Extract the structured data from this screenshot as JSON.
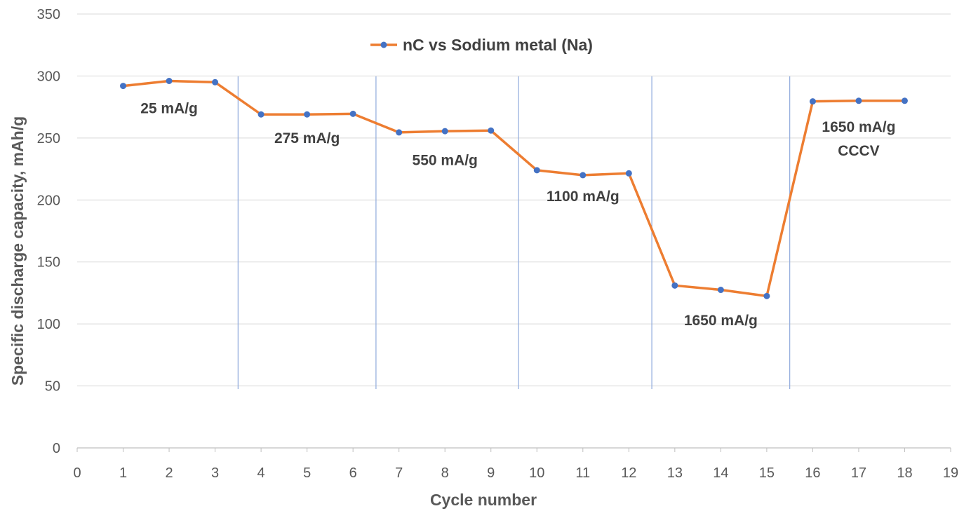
{
  "colors": {
    "line": "#ED7D31",
    "marker": "#4472C4",
    "grid": "#D9D9D9",
    "divider": "#8FAADC",
    "axis": "#BFBFBF",
    "text": "#595959"
  },
  "chart_data": {
    "type": "line",
    "title": "",
    "xlabel": "Cycle number",
    "ylabel": "Specific discharge capacity, mAh/g",
    "xlim": [
      0,
      19
    ],
    "ylim": [
      0,
      350
    ],
    "xticks": [
      0,
      1,
      2,
      3,
      4,
      5,
      6,
      7,
      8,
      9,
      10,
      11,
      12,
      13,
      14,
      15,
      16,
      17,
      18,
      19
    ],
    "yticks": [
      0,
      50,
      100,
      150,
      200,
      250,
      300,
      350
    ],
    "grid": "horizontal",
    "legend": {
      "position": "top-center",
      "entries": [
        "nC vs Sodium metal (Na)"
      ]
    },
    "series": [
      {
        "name": "nC vs Sodium metal (Na)",
        "x": [
          1,
          2,
          3,
          4,
          5,
          6,
          7,
          8,
          9,
          10,
          11,
          12,
          13,
          14,
          15,
          16,
          17,
          18
        ],
        "y": [
          292,
          296,
          295,
          269,
          269,
          269.5,
          254.5,
          255.5,
          256,
          224,
          220,
          221.5,
          131,
          127.5,
          122.5,
          279.5,
          280,
          280
        ]
      }
    ],
    "dividers_x": [
      3.5,
      6.5,
      9.6,
      12.5,
      15.5
    ],
    "annotations": [
      {
        "lines": [
          "25 mA/g"
        ],
        "x": 2,
        "y": 274
      },
      {
        "lines": [
          "275 mA/g"
        ],
        "x": 5,
        "y": 250
      },
      {
        "lines": [
          "550 mA/g"
        ],
        "x": 8,
        "y": 232
      },
      {
        "lines": [
          "1100 mA/g"
        ],
        "x": 11,
        "y": 203
      },
      {
        "lines": [
          "1650 mA/g"
        ],
        "x": 14,
        "y": 103
      },
      {
        "lines": [
          "1650 mA/g",
          "CCCV"
        ],
        "x": 17,
        "y": 259
      }
    ]
  }
}
